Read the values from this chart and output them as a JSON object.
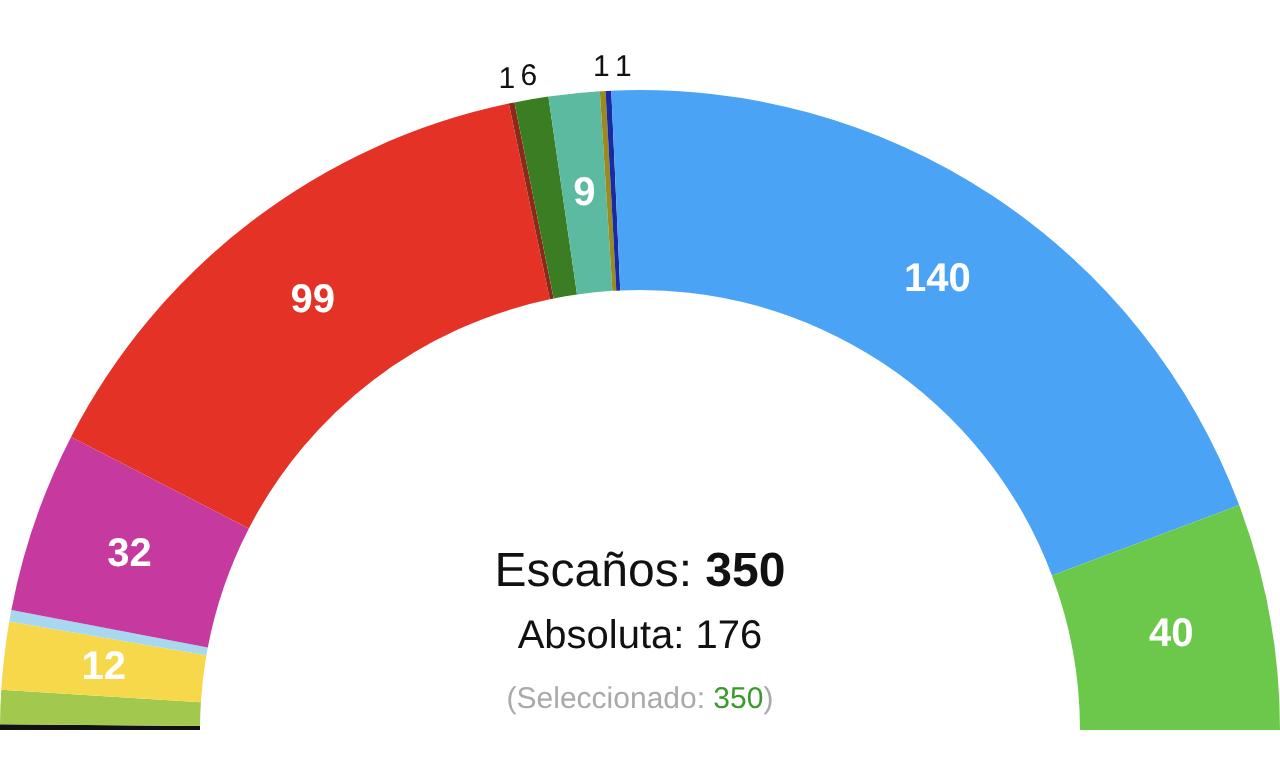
{
  "chart_data": {
    "type": "donut",
    "categories": [
      null,
      null,
      null,
      null,
      null,
      null,
      null,
      null,
      null,
      null,
      null,
      null,
      null
    ],
    "values": [
      1,
      6,
      12,
      2,
      32,
      99,
      1,
      6,
      9,
      1,
      1,
      140,
      40
    ],
    "value_labels": [
      null,
      null,
      "12",
      null,
      "32",
      "99",
      "1",
      "6",
      "9",
      "1",
      "1",
      "140",
      "40"
    ],
    "colors": [
      "#111111",
      "#a3c84e",
      "#f7d84a",
      "#a7d8f0",
      "#c63a9f",
      "#e43326",
      "#8b2a1a",
      "#3a7d22",
      "#5bbaa0",
      "#9a8a20",
      "#1a2aa0",
      "#4aa3f5",
      "#6cc84a"
    ],
    "annotations": [
      "Escaños: 350",
      "Absoluta: 176",
      "(Seleccionado: 350)"
    ]
  }
}
